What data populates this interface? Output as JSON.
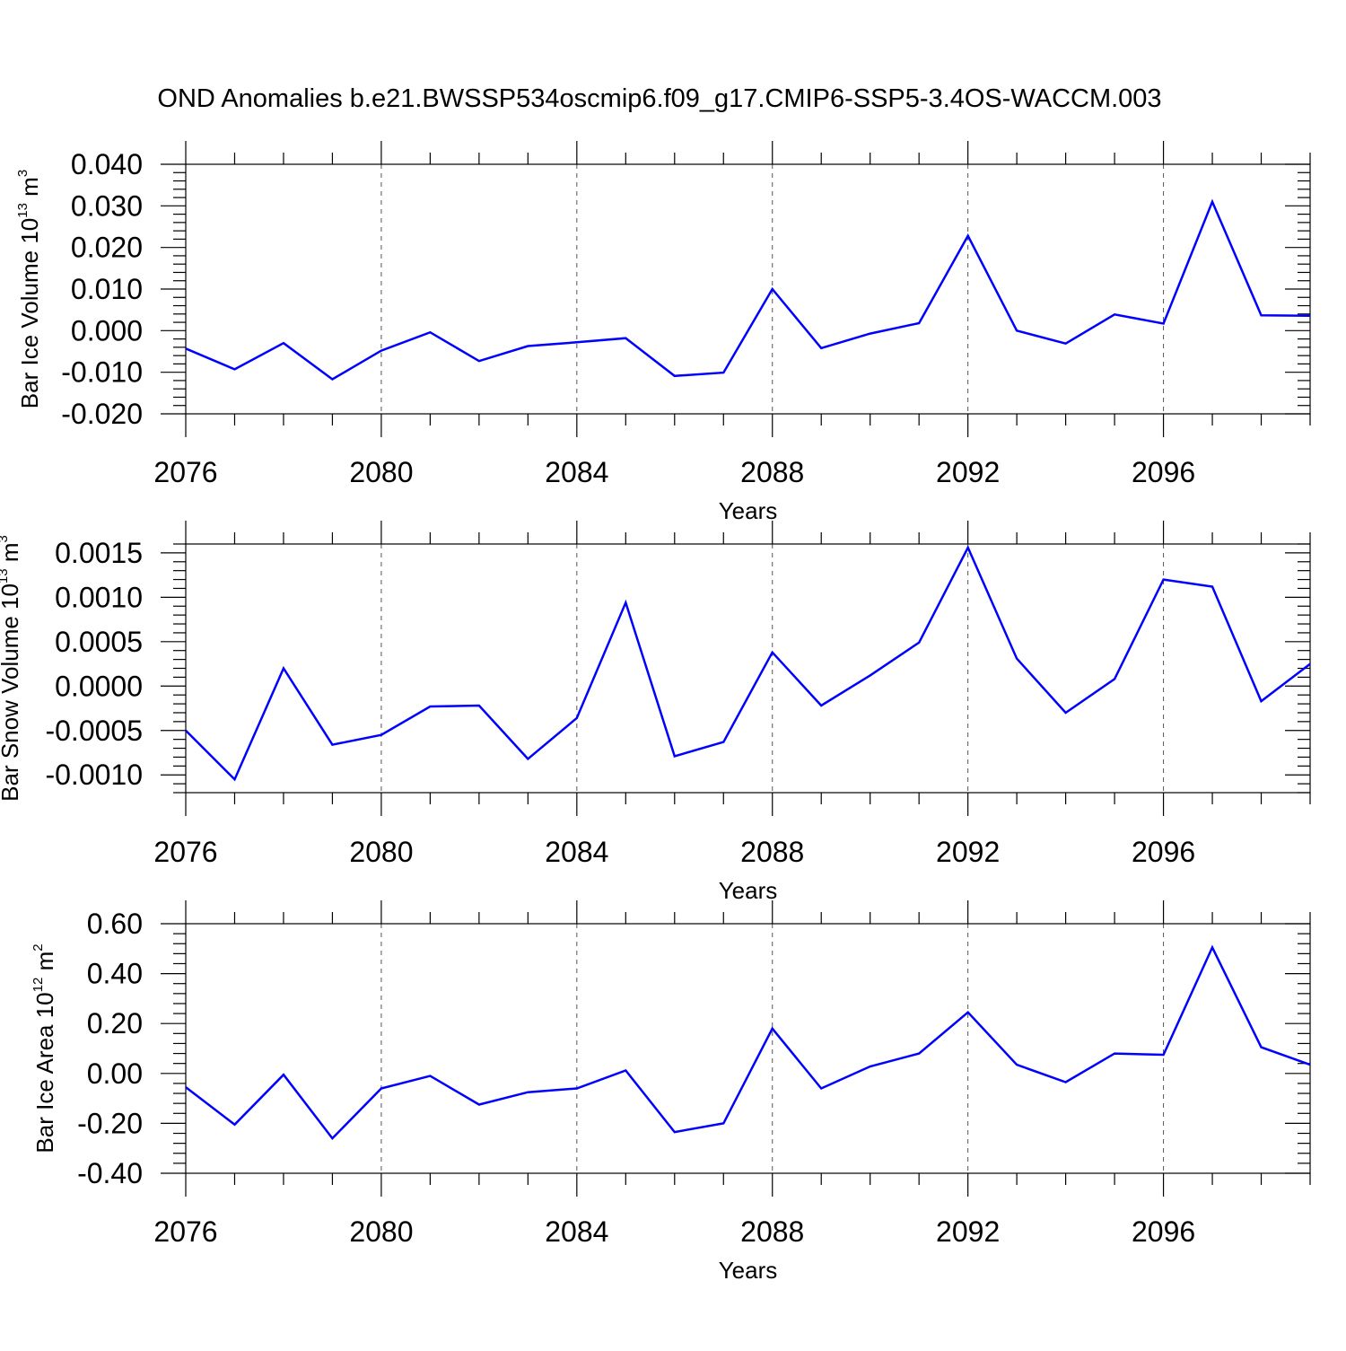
{
  "title": "OND Anomalies b.e21.BWSSP534oscmip6.f09_g17.CMIP6-SSP5-3.4OS-WACCM.003",
  "colors": {
    "line": "#0000ff",
    "axis": "#000000",
    "grid": "#555555"
  },
  "chart_data": [
    {
      "type": "line",
      "ylabel_main": "Bar Ice Volume 10",
      "ylabel_sup": "13",
      "ylabel_unit": "m",
      "ylabel_unit_sup": "3",
      "xlabel": "Years",
      "xlim": [
        2076,
        2099
      ],
      "ylim": [
        -0.02,
        0.04
      ],
      "xticks": [
        2076,
        2080,
        2084,
        2088,
        2092,
        2096
      ],
      "xtick_labels": [
        "2076",
        "2080",
        "2084",
        "2088",
        "2092",
        "2096"
      ],
      "yticks": [
        -0.02,
        -0.01,
        0.0,
        0.01,
        0.02,
        0.03,
        0.04
      ],
      "ytick_labels": [
        "-0.020",
        "-0.010",
        "0.000",
        "0.010",
        "0.020",
        "0.030",
        "0.040"
      ],
      "grid_x": [
        2080,
        2084,
        2088,
        2092,
        2096
      ],
      "x": [
        2076,
        2077,
        2078,
        2079,
        2080,
        2081,
        2082,
        2083,
        2084,
        2085,
        2086,
        2087,
        2088,
        2089,
        2090,
        2091,
        2092,
        2093,
        2094,
        2095,
        2096,
        2097,
        2098,
        2099
      ],
      "y": [
        -0.0043,
        -0.0093,
        -0.003,
        -0.0117,
        -0.0048,
        -0.0004,
        -0.0073,
        -0.0037,
        -0.0028,
        -0.0018,
        -0.0109,
        -0.0101,
        0.01,
        -0.0042,
        -0.0007,
        0.0018,
        0.0228,
        0.0,
        -0.0031,
        0.0039,
        0.0017,
        0.031,
        0.0037,
        0.0036
      ]
    },
    {
      "type": "line",
      "ylabel_main": "Bar Snow Volume 10",
      "ylabel_sup": "13",
      "ylabel_unit": "m",
      "ylabel_unit_sup": "3",
      "xlabel": "Years",
      "xlim": [
        2076,
        2099
      ],
      "ylim": [
        -0.0012,
        0.0016
      ],
      "xticks": [
        2076,
        2080,
        2084,
        2088,
        2092,
        2096
      ],
      "xtick_labels": [
        "2076",
        "2080",
        "2084",
        "2088",
        "2092",
        "2096"
      ],
      "yticks": [
        -0.001,
        -0.0005,
        0.0,
        0.0005,
        0.001,
        0.0015
      ],
      "ytick_labels": [
        "-0.0010",
        "-0.0005",
        "0.0000",
        "0.0005",
        "0.0010",
        "0.0015"
      ],
      "grid_x": [
        2080,
        2084,
        2088,
        2092,
        2096
      ],
      "x": [
        2076,
        2077,
        2078,
        2079,
        2080,
        2081,
        2082,
        2083,
        2084,
        2085,
        2086,
        2087,
        2088,
        2089,
        2090,
        2091,
        2092,
        2093,
        2094,
        2095,
        2096,
        2097,
        2098,
        2099
      ],
      "y": [
        -0.0005,
        -0.00105,
        0.0002,
        -0.00066,
        -0.00055,
        -0.00023,
        -0.00022,
        -0.00082,
        -0.00036,
        0.00094,
        -0.00079,
        -0.00063,
        0.00038,
        -0.00022,
        0.00012,
        0.00049,
        0.00156,
        0.00031,
        -0.0003,
        8e-05,
        0.0012,
        0.00112,
        -0.00017,
        0.00025
      ]
    },
    {
      "type": "line",
      "ylabel_main": "Bar Ice Area 10",
      "ylabel_sup": "12",
      "ylabel_unit": "m",
      "ylabel_unit_sup": "2",
      "xlabel": "Years",
      "xlim": [
        2076,
        2099
      ],
      "ylim": [
        -0.4,
        0.6
      ],
      "xticks": [
        2076,
        2080,
        2084,
        2088,
        2092,
        2096
      ],
      "xtick_labels": [
        "2076",
        "2080",
        "2084",
        "2088",
        "2092",
        "2096"
      ],
      "yticks": [
        -0.4,
        -0.2,
        0.0,
        0.2,
        0.4,
        0.6
      ],
      "ytick_labels": [
        "-0.40",
        "-0.20",
        "0.00",
        "0.20",
        "0.40",
        "0.60"
      ],
      "grid_x": [
        2080,
        2084,
        2088,
        2092,
        2096
      ],
      "x": [
        2076,
        2077,
        2078,
        2079,
        2080,
        2081,
        2082,
        2083,
        2084,
        2085,
        2086,
        2087,
        2088,
        2089,
        2090,
        2091,
        2092,
        2093,
        2094,
        2095,
        2096,
        2097,
        2098,
        2099
      ],
      "y": [
        -0.055,
        -0.205,
        -0.005,
        -0.26,
        -0.06,
        -0.01,
        -0.125,
        -0.075,
        -0.06,
        0.012,
        -0.235,
        -0.2,
        0.18,
        -0.06,
        0.028,
        0.08,
        0.245,
        0.035,
        -0.035,
        0.08,
        0.075,
        0.505,
        0.105,
        0.035
      ]
    }
  ]
}
